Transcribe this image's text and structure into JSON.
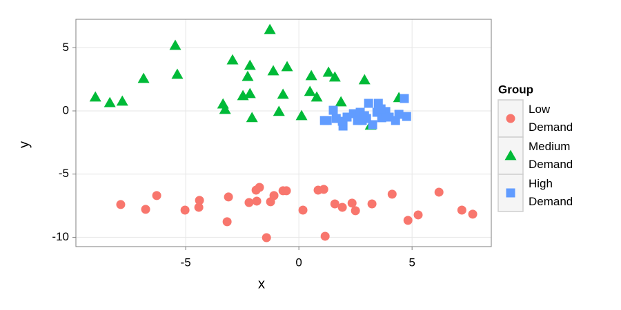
{
  "chart_data": {
    "type": "scatter",
    "x_label": "x",
    "y_label": "y",
    "xlim": [
      -9.85,
      8.5
    ],
    "ylim": [
      -10.74,
      7.25
    ],
    "xticks": [
      -5,
      0,
      5
    ],
    "yticks": [
      -10,
      -5,
      0,
      5
    ],
    "grid": true,
    "legend_title": "Group",
    "legend_position": "right",
    "series": [
      {
        "name": "Low Demand",
        "color": "#F8766D",
        "shape": "circle",
        "x": [
          -7.87,
          -6.77,
          -6.28,
          -5.03,
          -4.39,
          -4.42,
          -3.11,
          -3.17,
          -2.2,
          -1.89,
          -1.74,
          -1.86,
          -1.1,
          -1.25,
          -1.43,
          -0.7,
          -0.55,
          0.18,
          0.85,
          1.1,
          1.16,
          1.59,
          1.92,
          2.35,
          2.5,
          3.23,
          4.12,
          4.82,
          5.27,
          6.19,
          7.2,
          7.68
        ],
        "values": [
          -7.41,
          -7.79,
          -6.7,
          -7.85,
          -7.08,
          -7.63,
          -6.81,
          -8.77,
          -7.25,
          -6.27,
          -6.05,
          -7.14,
          -6.7,
          -7.19,
          -10.03,
          -6.32,
          -6.32,
          -7.85,
          -6.27,
          -6.21,
          -9.92,
          -7.36,
          -7.63,
          -7.3,
          -7.9,
          -7.36,
          -6.59,
          -8.66,
          -8.23,
          -6.43,
          -7.85,
          -8.17
        ]
      },
      {
        "name": "Medium Demand",
        "color": "#00BA38",
        "shape": "triangle",
        "x": [
          -8.99,
          -8.35,
          -7.8,
          -6.86,
          -5.46,
          -5.37,
          -2.93,
          -2.16,
          -2.26,
          -3.35,
          -3.26,
          -2.47,
          -2.16,
          -2.07,
          -1.28,
          -1.13,
          -0.52,
          -0.7,
          -0.88,
          0.12,
          0.55,
          0.49,
          0.79,
          1.31,
          1.59,
          1.86,
          2.9,
          3.17,
          4.42
        ],
        "values": [
          1.09,
          0.65,
          0.76,
          2.56,
          5.18,
          2.89,
          4.03,
          3.6,
          2.72,
          0.54,
          0.11,
          1.2,
          1.36,
          -0.54,
          6.43,
          3.16,
          3.49,
          1.31,
          -0.05,
          -0.38,
          2.78,
          1.53,
          1.09,
          3.05,
          2.67,
          0.71,
          2.45,
          -1.14,
          1.04
        ]
      },
      {
        "name": "High Demand",
        "color": "#619CFF",
        "shape": "square",
        "x": [
          1.25,
          1.13,
          1.52,
          1.65,
          1.95,
          1.92,
          2.13,
          2.41,
          2.59,
          2.71,
          2.9,
          3.08,
          2.99,
          3.26,
          3.51,
          3.45,
          3.66,
          3.84,
          3.99,
          4.27,
          4.42,
          4.66,
          4.76,
          3.63,
          2.8
        ],
        "values": [
          -0.76,
          -0.76,
          0.05,
          -0.6,
          -1.2,
          -0.82,
          -0.49,
          -0.22,
          -0.76,
          -0.11,
          -0.38,
          0.6,
          -0.6,
          -1.09,
          0.6,
          -0.11,
          -0.54,
          -0.05,
          -0.49,
          -0.76,
          -0.27,
          0.98,
          -0.44,
          0.16,
          -0.76
        ]
      }
    ]
  }
}
